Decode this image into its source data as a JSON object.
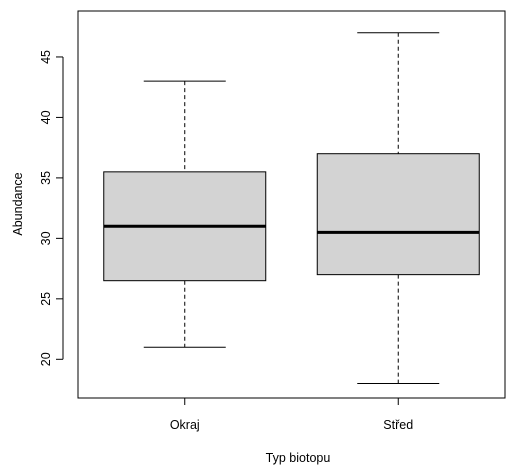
{
  "chart_data": {
    "type": "boxplot",
    "title": "",
    "xlabel": "Typ biotopu",
    "ylabel": "Abundance",
    "ylim": [
      16.8,
      48.8
    ],
    "yticks": [
      20,
      25,
      30,
      35,
      40,
      45
    ],
    "grid": false,
    "categories": [
      "Okraj",
      "Střed"
    ],
    "boxes": [
      {
        "category": "Okraj",
        "min": 21,
        "q1": 26.5,
        "median": 31,
        "q3": 35.5,
        "max": 43
      },
      {
        "category": "Střed",
        "min": 18,
        "q1": 27,
        "median": 30.5,
        "q3": 37,
        "max": 47
      }
    ],
    "colors": {
      "box_fill": "#d3d3d3",
      "stroke": "#000000"
    }
  }
}
